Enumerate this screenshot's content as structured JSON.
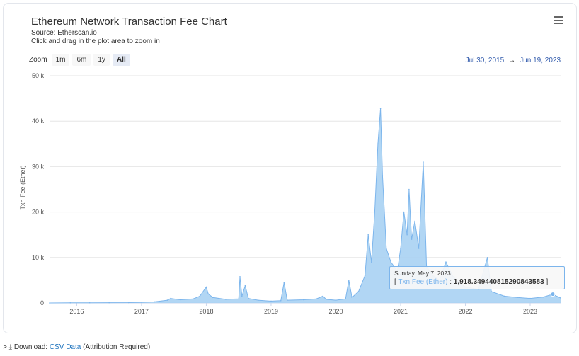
{
  "header": {
    "title": "Ethereum Network Transaction Fee Chart",
    "source": "Source: Etherscan.io",
    "hint": "Click and drag in the plot area to zoom in"
  },
  "zoom": {
    "label": "Zoom",
    "buttons": [
      "1m",
      "6m",
      "1y",
      "All"
    ],
    "active": "All"
  },
  "range": {
    "from": "Jul 30, 2015",
    "arrow": "→",
    "to": "Jun 19, 2023"
  },
  "tooltip": {
    "date": "Sunday, May 7, 2023",
    "open": "[",
    "series": "Txn Fee (Ether)",
    "sep": ":",
    "value": "1,918.349440815290843583",
    "close": "]"
  },
  "footer": {
    "prefix": "> ⤓ Download:",
    "link": "CSV Data",
    "suffix": "(Attribution Required)"
  },
  "colors": {
    "series": "#7cb5ec",
    "fill": "#a9d2f3",
    "link": "#1e73be",
    "range": "#335cad"
  },
  "chart_data": {
    "type": "area",
    "title": "Ethereum Network Transaction Fee Chart",
    "ylabel": "Txn Fee (Ether)",
    "ylim": [
      0,
      50000
    ],
    "xlim": [
      2015.58,
      2023.47
    ],
    "y_ticks": [
      0,
      10000,
      20000,
      30000,
      40000,
      50000
    ],
    "y_tick_labels": [
      "0",
      "10 k",
      "20 k",
      "30 k",
      "40 k",
      "50 k"
    ],
    "x_ticks": [
      2016,
      2017,
      2018,
      2019,
      2020,
      2021,
      2022,
      2023
    ],
    "x_tick_labels": [
      "2016",
      "2017",
      "2018",
      "2019",
      "2020",
      "2021",
      "2022",
      "2023"
    ],
    "grid": true,
    "legend": "none",
    "series": [
      {
        "name": "Txn Fee (Ether)",
        "points": [
          [
            2015.58,
            0
          ],
          [
            2015.9,
            30
          ],
          [
            2016.2,
            40
          ],
          [
            2016.5,
            60
          ],
          [
            2016.8,
            80
          ],
          [
            2017.0,
            150
          ],
          [
            2017.2,
            250
          ],
          [
            2017.4,
            600
          ],
          [
            2017.45,
            1000
          ],
          [
            2017.6,
            700
          ],
          [
            2017.8,
            900
          ],
          [
            2017.9,
            1500
          ],
          [
            2018.0,
            3500
          ],
          [
            2018.03,
            2000
          ],
          [
            2018.1,
            1200
          ],
          [
            2018.3,
            800
          ],
          [
            2018.5,
            900
          ],
          [
            2018.52,
            5800
          ],
          [
            2018.55,
            1500
          ],
          [
            2018.6,
            3800
          ],
          [
            2018.65,
            1000
          ],
          [
            2018.8,
            600
          ],
          [
            2019.0,
            400
          ],
          [
            2019.15,
            500
          ],
          [
            2019.2,
            4500
          ],
          [
            2019.25,
            600
          ],
          [
            2019.5,
            700
          ],
          [
            2019.7,
            900
          ],
          [
            2019.8,
            1500
          ],
          [
            2019.85,
            800
          ],
          [
            2020.0,
            600
          ],
          [
            2020.15,
            900
          ],
          [
            2020.2,
            5000
          ],
          [
            2020.25,
            1200
          ],
          [
            2020.35,
            2500
          ],
          [
            2020.45,
            6000
          ],
          [
            2020.5,
            15000
          ],
          [
            2020.55,
            9000
          ],
          [
            2020.6,
            20000
          ],
          [
            2020.65,
            35000
          ],
          [
            2020.69,
            42800
          ],
          [
            2020.72,
            28000
          ],
          [
            2020.78,
            12000
          ],
          [
            2020.85,
            9000
          ],
          [
            2020.95,
            7000
          ],
          [
            2021.0,
            12000
          ],
          [
            2021.05,
            20000
          ],
          [
            2021.1,
            15000
          ],
          [
            2021.13,
            25000
          ],
          [
            2021.17,
            14000
          ],
          [
            2021.22,
            18000
          ],
          [
            2021.28,
            12000
          ],
          [
            2021.35,
            31000
          ],
          [
            2021.4,
            8000
          ],
          [
            2021.5,
            6000
          ],
          [
            2021.6,
            5000
          ],
          [
            2021.7,
            9000
          ],
          [
            2021.8,
            6000
          ],
          [
            2021.9,
            4500
          ],
          [
            2022.0,
            3500
          ],
          [
            2022.2,
            3000
          ],
          [
            2022.34,
            10000
          ],
          [
            2022.4,
            2500
          ],
          [
            2022.6,
            1500
          ],
          [
            2022.8,
            1200
          ],
          [
            2023.0,
            1000
          ],
          [
            2023.2,
            1300
          ],
          [
            2023.35,
            1918
          ],
          [
            2023.42,
            1400
          ],
          [
            2023.47,
            1100
          ]
        ]
      }
    ]
  }
}
